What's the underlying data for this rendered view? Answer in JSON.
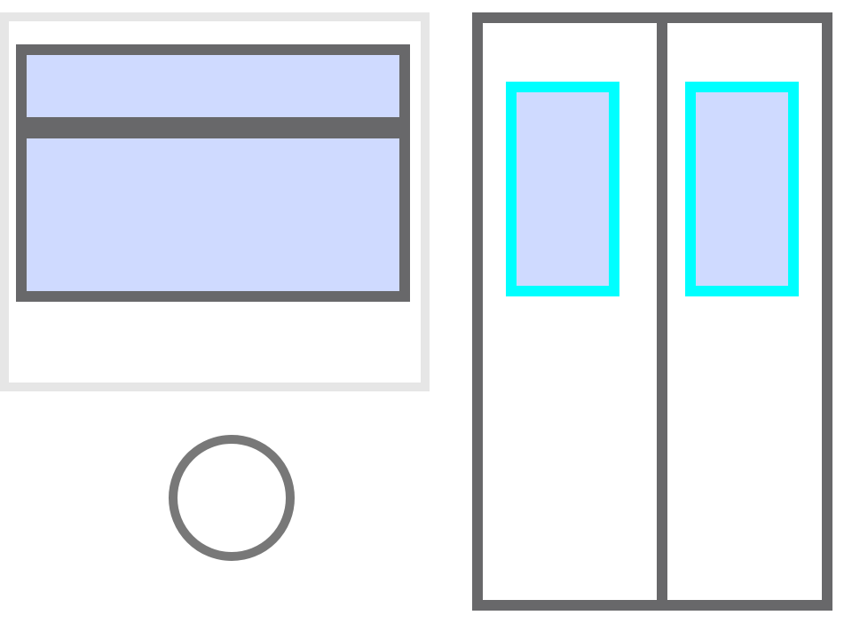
{
  "colors": {
    "background": "#ffffff",
    "panel_border": "#e6e6e6",
    "frame": "#68686a",
    "glass": "#cfdaff",
    "highlight": "#00ffff",
    "button_ring": "#787878"
  },
  "elements": {
    "left_panel": {
      "kind": "window",
      "panes": 2
    },
    "round_button": {
      "kind": "circle-button"
    },
    "right_panel": {
      "kind": "double-door",
      "door_windows": 2,
      "selected": true
    }
  }
}
